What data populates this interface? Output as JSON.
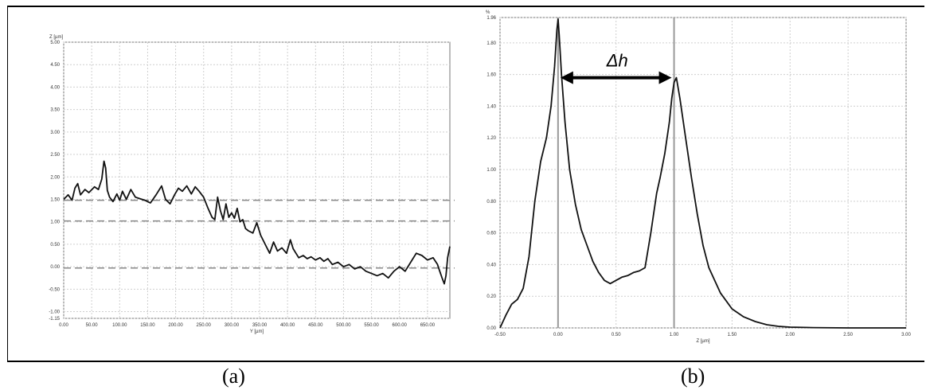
{
  "captions": {
    "a": "(a)",
    "b": "(b)"
  },
  "chart_data": [
    {
      "type": "line",
      "panel": "(a)",
      "xlabel": "Y [µm]",
      "ylabel": "Z [µm]",
      "xlim": [
        0,
        690
      ],
      "ylim": [
        -1.15,
        5.0
      ],
      "grid": true,
      "x_ticks": [
        "0.00",
        "50.00",
        "100.00",
        "150.00",
        "200.00",
        "250.00",
        "300.00",
        "350.00",
        "400.00",
        "450.00",
        "500.00",
        "550.00",
        "600.00",
        "650.00"
      ],
      "x_tick_values": [
        0,
        50,
        100,
        150,
        200,
        250,
        300,
        350,
        400,
        450,
        500,
        550,
        600,
        650
      ],
      "y_ticks": [
        "5.00",
        "4.50",
        "4.00",
        "3.50",
        "3.00",
        "2.50",
        "2.00",
        "1.50",
        "1.00",
        "0.50",
        "0.00",
        "-0.50",
        "-1.00",
        "-1.15"
      ],
      "y_tick_values": [
        5.0,
        4.5,
        4.0,
        3.5,
        3.0,
        2.5,
        2.0,
        1.5,
        1.0,
        0.5,
        0.0,
        -0.5,
        -1.0,
        -1.15
      ],
      "reference_lines": [
        1.48,
        1.02,
        -0.03
      ],
      "series": [
        {
          "x": [
            0,
            8,
            15,
            20,
            25,
            30,
            38,
            45,
            55,
            62,
            68,
            72,
            75,
            78,
            82,
            88,
            95,
            100,
            105,
            112,
            120,
            128,
            135,
            145,
            155,
            165,
            175,
            182,
            190,
            198,
            205,
            212,
            220,
            228,
            235,
            242,
            250,
            258,
            265,
            270,
            275,
            280,
            285,
            290,
            295,
            300,
            305,
            310,
            315,
            320,
            325,
            330,
            338,
            345,
            352,
            360,
            368,
            375,
            382,
            390,
            398,
            405,
            410,
            415,
            420,
            428,
            435,
            442,
            450,
            458,
            465,
            472,
            480,
            490,
            500,
            510,
            520,
            530,
            540,
            550,
            560,
            570,
            580,
            590,
            600,
            610,
            620,
            630,
            640,
            650,
            660,
            668,
            672,
            676,
            680,
            683,
            686,
            690
          ],
          "y": [
            1.5,
            1.6,
            1.48,
            1.75,
            1.85,
            1.6,
            1.72,
            1.65,
            1.78,
            1.72,
            1.95,
            2.35,
            2.2,
            1.7,
            1.55,
            1.45,
            1.62,
            1.48,
            1.68,
            1.5,
            1.72,
            1.55,
            1.52,
            1.48,
            1.42,
            1.6,
            1.8,
            1.5,
            1.4,
            1.6,
            1.75,
            1.68,
            1.8,
            1.62,
            1.78,
            1.68,
            1.55,
            1.3,
            1.1,
            1.05,
            1.55,
            1.25,
            1.05,
            1.4,
            1.1,
            1.2,
            1.08,
            1.3,
            1.0,
            1.05,
            0.85,
            0.8,
            0.75,
            0.98,
            0.7,
            0.5,
            0.3,
            0.55,
            0.35,
            0.42,
            0.3,
            0.6,
            0.4,
            0.3,
            0.2,
            0.25,
            0.18,
            0.22,
            0.15,
            0.2,
            0.12,
            0.18,
            0.05,
            0.1,
            0.0,
            0.05,
            -0.05,
            0.0,
            -0.1,
            -0.15,
            -0.2,
            -0.15,
            -0.25,
            -0.1,
            0.0,
            -0.1,
            0.1,
            0.3,
            0.25,
            0.15,
            0.2,
            0.05,
            -0.1,
            -0.25,
            -0.38,
            -0.2,
            0.2,
            0.45
          ]
        }
      ]
    },
    {
      "type": "line",
      "panel": "(b)",
      "xlabel": "Z [µm]",
      "ylabel": "%",
      "xlim": [
        -0.5,
        3.0
      ],
      "ylim": [
        0,
        1.96
      ],
      "grid": true,
      "x_ticks": [
        "-0.50",
        "0.00",
        "0.50",
        "1.00",
        "1.50",
        "2.00",
        "2.50",
        "3.00"
      ],
      "x_tick_values": [
        -0.5,
        0.0,
        0.5,
        1.0,
        1.5,
        2.0,
        2.5,
        3.0
      ],
      "y_ticks": [
        "1.96",
        "1.80",
        "1.60",
        "1.40",
        "1.20",
        "1.00",
        "0.80",
        "0.60",
        "0.40",
        "0.20",
        "0.00"
      ],
      "y_tick_values": [
        1.96,
        1.8,
        1.6,
        1.4,
        1.2,
        1.0,
        0.8,
        0.6,
        0.4,
        0.2,
        0.0
      ],
      "reference_lines_x": [
        0.0,
        1.0
      ],
      "annotation": {
        "text": "Δh",
        "from_x": 0.0,
        "to_x": 1.0,
        "y": 1.58
      },
      "series": [
        {
          "x": [
            -0.5,
            -0.45,
            -0.4,
            -0.35,
            -0.3,
            -0.25,
            -0.2,
            -0.15,
            -0.1,
            -0.06,
            -0.03,
            -0.01,
            0.0,
            0.01,
            0.03,
            0.06,
            0.1,
            0.15,
            0.2,
            0.25,
            0.3,
            0.35,
            0.4,
            0.45,
            0.5,
            0.55,
            0.6,
            0.65,
            0.7,
            0.75,
            0.8,
            0.85,
            0.88,
            0.92,
            0.96,
            0.98,
            1.0,
            1.02,
            1.05,
            1.1,
            1.15,
            1.2,
            1.25,
            1.3,
            1.4,
            1.5,
            1.6,
            1.7,
            1.8,
            1.9,
            2.0,
            2.2,
            2.5,
            3.0
          ],
          "y": [
            0.0,
            0.08,
            0.15,
            0.18,
            0.25,
            0.45,
            0.8,
            1.05,
            1.2,
            1.4,
            1.65,
            1.88,
            1.95,
            1.85,
            1.6,
            1.3,
            1.0,
            0.78,
            0.62,
            0.52,
            0.42,
            0.35,
            0.3,
            0.28,
            0.3,
            0.32,
            0.33,
            0.35,
            0.36,
            0.38,
            0.6,
            0.85,
            0.95,
            1.1,
            1.3,
            1.45,
            1.55,
            1.58,
            1.45,
            1.2,
            0.95,
            0.72,
            0.52,
            0.38,
            0.22,
            0.12,
            0.07,
            0.04,
            0.02,
            0.01,
            0.005,
            0.002,
            0.0,
            0.0
          ]
        }
      ]
    }
  ]
}
